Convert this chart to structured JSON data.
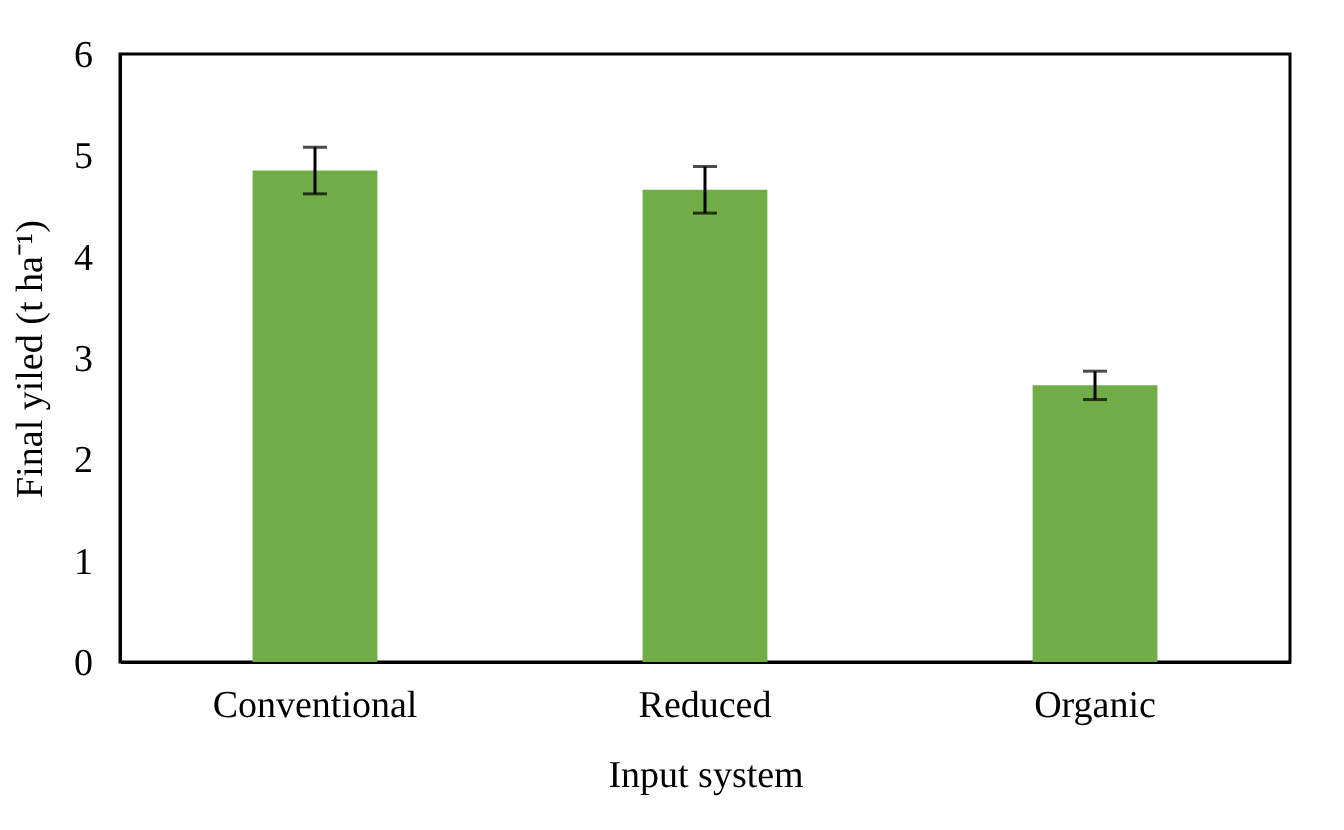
{
  "chart_data": {
    "type": "bar",
    "xlabel": "Input system",
    "ylabel": "Final yiled (t ha⁻¹)",
    "categories": [
      "Conventional",
      "Reduced",
      "Organic"
    ],
    "values": [
      4.85,
      4.66,
      2.73
    ],
    "errors": [
      0.23,
      0.23,
      0.14
    ],
    "color": "#70ad47",
    "ylim": [
      0,
      6
    ],
    "yticks": [
      0,
      1,
      2,
      3,
      4,
      5,
      6
    ],
    "grid": false
  }
}
